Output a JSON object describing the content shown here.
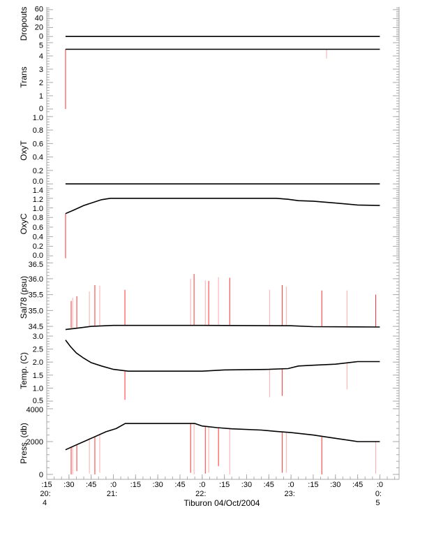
{
  "chart_data": {
    "type": "line",
    "title": "",
    "xlabel": "Tiburon 04/Oct/2004",
    "x_units": "minutes since 20:00",
    "xlim": [
      15,
      253
    ],
    "x_ticks": [
      {
        "t": 15,
        "label": ":15",
        "hour": "20:",
        "day": "4"
      },
      {
        "t": 30,
        "label": ":30"
      },
      {
        "t": 45,
        "label": ":45"
      },
      {
        "t": 60,
        "label": ":0",
        "hour": "21:"
      },
      {
        "t": 75,
        "label": ":15"
      },
      {
        "t": 90,
        "label": ":30"
      },
      {
        "t": 105,
        "label": ":45"
      },
      {
        "t": 120,
        "label": ":0",
        "hour": "22:"
      },
      {
        "t": 135,
        "label": ":15"
      },
      {
        "t": 150,
        "label": ":30"
      },
      {
        "t": 165,
        "label": ":45"
      },
      {
        "t": 180,
        "label": ":0",
        "hour": "23:"
      },
      {
        "t": 195,
        "label": ":15"
      },
      {
        "t": 210,
        "label": ":30"
      },
      {
        "t": 225,
        "label": ":45"
      },
      {
        "t": 240,
        "label": ":0",
        "hour": "0:",
        "day": "5"
      }
    ],
    "colors": {
      "data": "#000000",
      "spike": "#ff3030",
      "spike_light": "#ffaaaa",
      "axis": "#aaaaaa"
    },
    "panels": [
      {
        "name": "dropouts",
        "ylabel": "Dropouts",
        "ylim": [
          -9,
          66
        ],
        "ticks": [
          {
            "v": 0,
            "label": "0"
          },
          {
            "v": 20,
            "label": "20"
          },
          {
            "v": 40,
            "label": "40"
          },
          {
            "v": 60,
            "label": "60"
          }
        ],
        "series": [
          [
            27.7,
            0
          ],
          [
            240,
            0
          ]
        ],
        "spikes": []
      },
      {
        "name": "trans",
        "ylabel": "Trans",
        "ylim": [
          -0.37,
          5.16
        ],
        "ticks": [
          {
            "v": 0,
            "label": "0"
          },
          {
            "v": 1,
            "label": "1"
          },
          {
            "v": 2,
            "label": "2"
          },
          {
            "v": 3,
            "label": "3"
          },
          {
            "v": 4,
            "label": "4"
          },
          {
            "v": 5,
            "label": "5"
          }
        ],
        "series": [
          [
            27.7,
            4.5
          ],
          [
            240,
            4.5
          ]
        ],
        "spikes": [
          [
            27.7,
            4.5,
            0
          ],
          [
            204,
            4.5,
            3.8
          ]
        ]
      },
      {
        "name": "oxyt",
        "ylabel": "OxyT",
        "ylim": [
          -0.05,
          1.04
        ],
        "ticks": [
          {
            "v": 0,
            "label": "0.0"
          },
          {
            "v": 0.2,
            "label": "0.2"
          },
          {
            "v": 0.4,
            "label": "0.4"
          },
          {
            "v": 0.6,
            "label": "0.6"
          },
          {
            "v": 0.8,
            "label": "0.8"
          },
          {
            "v": 1.0,
            "label": "1.0"
          }
        ],
        "series": [
          [
            27.7,
            0
          ],
          [
            240,
            0
          ]
        ],
        "spikes": []
      },
      {
        "name": "oxyc",
        "ylabel": "OxyC",
        "ylim": [
          -0.1,
          1.43
        ],
        "ticks": [
          {
            "v": 0,
            "label": "0.0"
          },
          {
            "v": 0.2,
            "label": "0.2"
          },
          {
            "v": 0.4,
            "label": "0.4"
          },
          {
            "v": 0.6,
            "label": "0.6"
          },
          {
            "v": 0.8,
            "label": "0.8"
          },
          {
            "v": 1.0,
            "label": "1.0"
          },
          {
            "v": 1.2,
            "label": "1.2"
          },
          {
            "v": 1.4,
            "label": "1.4"
          }
        ],
        "series": [
          [
            27.7,
            0.88
          ],
          [
            33,
            0.95
          ],
          [
            40,
            1.05
          ],
          [
            45,
            1.1
          ],
          [
            52,
            1.17
          ],
          [
            58,
            1.2
          ],
          [
            120,
            1.2
          ],
          [
            170,
            1.2
          ],
          [
            178,
            1.18
          ],
          [
            185,
            1.15
          ],
          [
            195,
            1.14
          ],
          [
            210,
            1.1
          ],
          [
            225,
            1.06
          ],
          [
            240,
            1.05
          ]
        ],
        "spikes": [
          [
            27.7,
            0.88,
            -0.05
          ]
        ]
      },
      {
        "name": "sal",
        "ylabel": "Sal78 (psu)",
        "ylim": [
          34.26,
          36.57
        ],
        "ticks": [
          {
            "v": 34.5,
            "label": "34.5"
          },
          {
            "v": 35.0,
            "label": "35.0"
          },
          {
            "v": 35.5,
            "label": "35.5"
          },
          {
            "v": 36.0,
            "label": "36.0"
          },
          {
            "v": 36.5,
            "label": "36.5"
          }
        ],
        "series": [
          [
            27.7,
            34.4
          ],
          [
            35,
            34.44
          ],
          [
            45,
            34.5
          ],
          [
            60,
            34.53
          ],
          [
            120,
            34.53
          ],
          [
            180,
            34.52
          ],
          [
            195,
            34.49
          ],
          [
            240,
            34.48
          ]
        ],
        "spikes": [
          [
            31.5,
            34.45,
            35.3
          ],
          [
            32.5,
            34.45,
            35.4
          ],
          [
            35.3,
            34.46,
            35.45
          ],
          [
            43.8,
            34.49,
            35.6
          ],
          [
            47.5,
            34.5,
            35.8
          ],
          [
            50.8,
            34.51,
            35.78
          ],
          [
            67.8,
            34.53,
            35.65
          ],
          [
            112.2,
            34.53,
            36.0
          ],
          [
            114.5,
            34.53,
            36.15
          ],
          [
            122.1,
            34.53,
            35.95
          ],
          [
            124.4,
            34.53,
            35.93
          ],
          [
            131,
            34.53,
            36.05
          ],
          [
            138.6,
            34.53,
            36.03
          ],
          [
            165.5,
            34.52,
            35.65
          ],
          [
            174,
            34.52,
            35.8
          ],
          [
            176.8,
            34.52,
            35.75
          ],
          [
            200.8,
            34.49,
            35.63
          ],
          [
            217.8,
            34.48,
            35.63
          ],
          [
            237.2,
            34.48,
            35.5
          ]
        ]
      },
      {
        "name": "temp",
        "ylabel": "Temp. (C)",
        "ylim": [
          0.26,
          3.08
        ],
        "ticks": [
          {
            "v": 0.5,
            "label": "0.5"
          },
          {
            "v": 1.0,
            "label": "1.0"
          },
          {
            "v": 1.5,
            "label": "1.5"
          },
          {
            "v": 2.0,
            "label": "2.0"
          },
          {
            "v": 2.5,
            "label": "2.5"
          },
          {
            "v": 3.0,
            "label": "3.0"
          }
        ],
        "series": [
          [
            27.7,
            2.85
          ],
          [
            31,
            2.6
          ],
          [
            35,
            2.35
          ],
          [
            40,
            2.15
          ],
          [
            45,
            1.98
          ],
          [
            52,
            1.85
          ],
          [
            60,
            1.72
          ],
          [
            70,
            1.65
          ],
          [
            120,
            1.65
          ],
          [
            135,
            1.7
          ],
          [
            165,
            1.72
          ],
          [
            178,
            1.75
          ],
          [
            185,
            1.85
          ],
          [
            195,
            1.88
          ],
          [
            210,
            1.92
          ],
          [
            225,
            2.02
          ],
          [
            240,
            2.02
          ]
        ],
        "spikes": [
          [
            67.8,
            1.65,
            0.55
          ],
          [
            165.5,
            1.72,
            0.65
          ],
          [
            174,
            1.74,
            0.7
          ],
          [
            217.8,
            1.97,
            0.95
          ]
        ]
      },
      {
        "name": "press",
        "ylabel": "Press. (db)",
        "ylim": [
          -300,
          4085
        ],
        "ticks": [
          {
            "v": 0,
            "label": "0"
          },
          {
            "v": 2000,
            "label": "2000"
          },
          {
            "v": 4000,
            "label": "4000"
          }
        ],
        "series": [
          [
            27.7,
            1500
          ],
          [
            35,
            1800
          ],
          [
            45,
            2200
          ],
          [
            55,
            2600
          ],
          [
            62,
            2800
          ],
          [
            68,
            3100
          ],
          [
            115,
            3100
          ],
          [
            120,
            2950
          ],
          [
            130,
            2850
          ],
          [
            140,
            2780
          ],
          [
            160,
            2700
          ],
          [
            170,
            2620
          ],
          [
            180,
            2550
          ],
          [
            195,
            2400
          ],
          [
            210,
            2200
          ],
          [
            225,
            2000
          ],
          [
            240,
            2000
          ]
        ],
        "spikes": [
          [
            31.5,
            1650,
            0
          ],
          [
            32.5,
            1700,
            0
          ],
          [
            35.3,
            1800,
            200
          ],
          [
            43.8,
            2150,
            50
          ],
          [
            47.5,
            2300,
            0
          ],
          [
            50.8,
            2450,
            100
          ],
          [
            112.2,
            3100,
            100
          ],
          [
            114.5,
            3100,
            0
          ],
          [
            122.1,
            2950,
            50
          ],
          [
            124.4,
            2920,
            100
          ],
          [
            131,
            2850,
            500
          ],
          [
            138.6,
            2800,
            0
          ],
          [
            174,
            2600,
            100
          ],
          [
            176.8,
            2580,
            100
          ],
          [
            200.8,
            2300,
            0
          ],
          [
            237.2,
            2000,
            50
          ]
        ]
      }
    ]
  }
}
